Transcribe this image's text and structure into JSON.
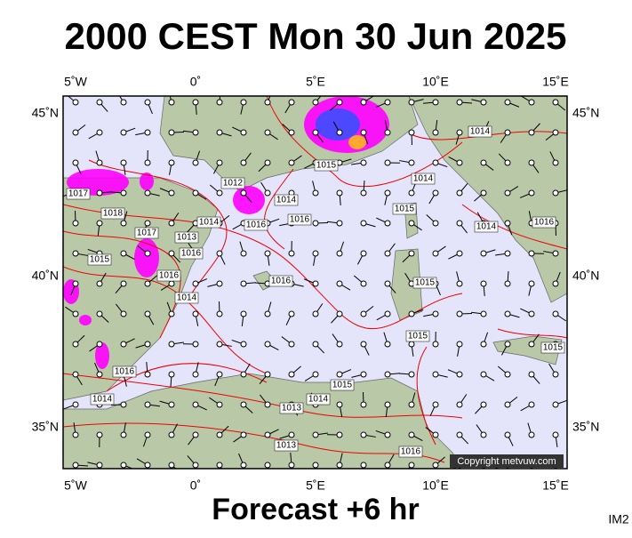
{
  "header": {
    "title": "2000 CEST Mon 30 Jun 2025"
  },
  "map": {
    "longitude_labels": [
      "5˚W",
      "0˚",
      "5˚E",
      "10˚E",
      "15˚E"
    ],
    "latitude_labels": [
      "45˚N",
      "40˚N",
      "35˚N"
    ],
    "isobar_labels": [
      "1014",
      "1015",
      "1014",
      "1017",
      "1018",
      "1015",
      "1014",
      "1016",
      "1016",
      "1017",
      "1013",
      "1014",
      "1016",
      "1015",
      "1016",
      "1014",
      "1016",
      "1015",
      "1014",
      "1016",
      "1015",
      "1015",
      "1016",
      "1015",
      "1014",
      "1014",
      "1013",
      "1013",
      "1016",
      "1012"
    ],
    "copyright": "Copyright metvuw.com"
  },
  "footer": {
    "caption": "Forecast +6 hr",
    "image_id": "IM2"
  }
}
